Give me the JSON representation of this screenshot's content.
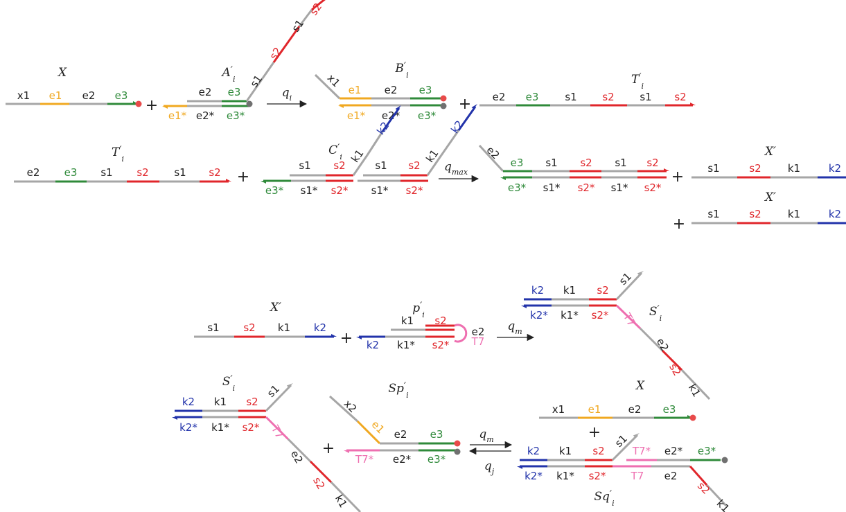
{
  "colors": {
    "gray": "#a6a6a6",
    "orange": "#f0a820",
    "green": "#2f8a3a",
    "red": "#e0262b",
    "blue": "#2233aa",
    "pink": "#ee6fb0",
    "black": "#222222",
    "bead_red": "#e84a4a",
    "bead_gray": "#707070"
  },
  "labels": {
    "x": "X",
    "a_i": "A",
    "b_i": "B",
    "t_i": "T",
    "c_i": "C",
    "x_prime": "X′",
    "p_i": "p",
    "s_i": "S",
    "sp_i": "Sp",
    "sq_i": "Sq",
    "i": "i",
    "prime": "′",
    "q": "q",
    "max": "max",
    "m": "m",
    "j": "j",
    "plus": "+"
  },
  "domains": {
    "x1": "x1",
    "x2": "x2",
    "e1": "e1",
    "e2": "e2",
    "e3": "e3",
    "e1s": "e1*",
    "e2s": "e2*",
    "e3s": "e3*",
    "s1": "s1",
    "s2": "s2",
    "s1s": "s1*",
    "s2s": "s2*",
    "k1": "k1",
    "k2": "k2",
    "k1s": "k1*",
    "k2s": "k2*",
    "t7": "T7",
    "t7s": "T7*"
  }
}
